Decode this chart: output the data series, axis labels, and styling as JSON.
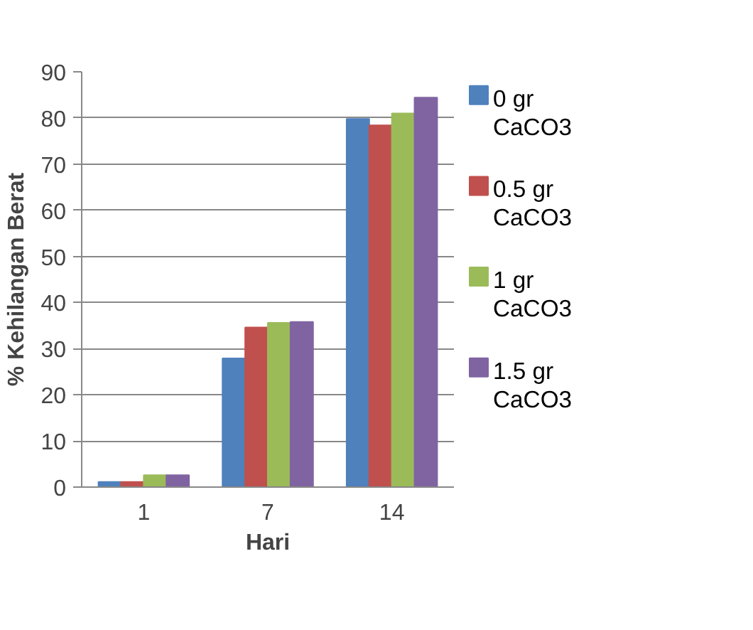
{
  "chart_data": {
    "type": "bar",
    "xlabel": "Hari",
    "ylabel": "% Kehilangan Berat",
    "categories": [
      "1",
      "7",
      "14"
    ],
    "series": [
      {
        "name": "0 gr CaCO3",
        "color": "#4f81bd",
        "values": [
          1.1,
          27.9,
          79.8
        ]
      },
      {
        "name": "0.5 gr CaCO3",
        "color": "#c0504d",
        "values": [
          1.1,
          34.6,
          78.4
        ]
      },
      {
        "name": "1 gr CaCO3",
        "color": "#9bbb59",
        "values": [
          2.6,
          35.6,
          81.0
        ]
      },
      {
        "name": "1.5 gr CaCO3",
        "color": "#8064a2",
        "values": [
          2.6,
          35.8,
          84.4
        ]
      }
    ],
    "ylim": [
      0,
      90
    ],
    "yticks": [
      0,
      10,
      20,
      30,
      40,
      50,
      60,
      70,
      80,
      90
    ],
    "grid": "y",
    "legend": "right"
  }
}
